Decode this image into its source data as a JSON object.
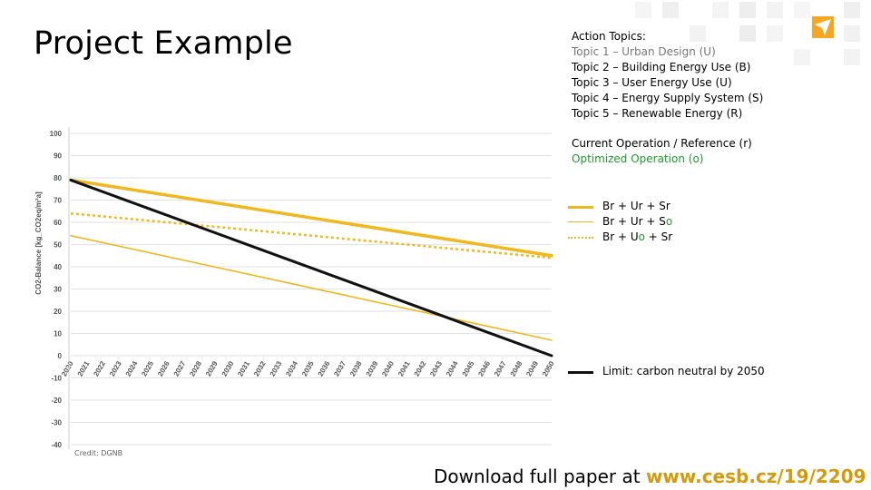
{
  "slide": {
    "title": "Project Example",
    "topics_header": "Action Topics:",
    "topics": [
      "Topic 1 – Urban Design (U)",
      "Topic 2 – Building Energy Use (B)",
      "Topic 3 – User Energy Use (U)",
      "Topic 4 – Energy Supply System (S)",
      "Topic 5 – Renewable Energy (R)"
    ],
    "current_operation": "Current Operation / Reference (r)",
    "optimized_operation": "Optimized Operation (o)",
    "credit": "Credit: DGNB",
    "download_prefix": "Download full paper at ",
    "download_url": "www.cesb.cz/19/2209"
  },
  "legend": [
    {
      "pre": "Br + Ur + Sr",
      "o": "",
      "post": ""
    },
    {
      "pre": "Br + Ur + S",
      "o": "o",
      "post": ""
    },
    {
      "pre": "Br + U",
      "o": "o",
      "post": " + Sr"
    },
    {
      "pre": "Limit: carbon neutral by 2050",
      "o": "",
      "post": ""
    }
  ],
  "chart_data": {
    "type": "line",
    "ylabel": "CO2-Balance [kg_CO2eq/m²a]",
    "xlabel": "",
    "ylim": [
      -40,
      100
    ],
    "yticks": [
      100,
      90,
      80,
      70,
      60,
      50,
      40,
      30,
      20,
      10,
      0,
      -10,
      -20,
      -30,
      -40
    ],
    "x": [
      2020,
      2021,
      2022,
      2023,
      2024,
      2025,
      2026,
      2027,
      2028,
      2029,
      2030,
      2031,
      2032,
      2033,
      2034,
      2035,
      2036,
      2037,
      2038,
      2039,
      2040,
      2041,
      2042,
      2043,
      2044,
      2045,
      2046,
      2047,
      2048,
      2049,
      2050
    ],
    "grid": true,
    "series": [
      {
        "name": "Br + Ur + Sr",
        "start": [
          2020,
          79
        ],
        "end": [
          2050,
          45
        ],
        "color": "#f0b81e",
        "width": 3.5,
        "dash": "solid"
      },
      {
        "name": "Br + Ur + So",
        "start": [
          2020,
          54
        ],
        "end": [
          2050,
          7
        ],
        "color": "#f0b81e",
        "width": 1.6,
        "dash": "solid"
      },
      {
        "name": "Br + Uo + Sr",
        "start": [
          2020,
          64
        ],
        "end": [
          2050,
          44
        ],
        "color": "#f0b81e",
        "width": 2.5,
        "dash": "dotted"
      },
      {
        "name": "Limit: carbon neutral by 2050",
        "start": [
          2020,
          79
        ],
        "end": [
          2050,
          0
        ],
        "color": "#111111",
        "width": 3,
        "dash": "solid"
      }
    ]
  }
}
